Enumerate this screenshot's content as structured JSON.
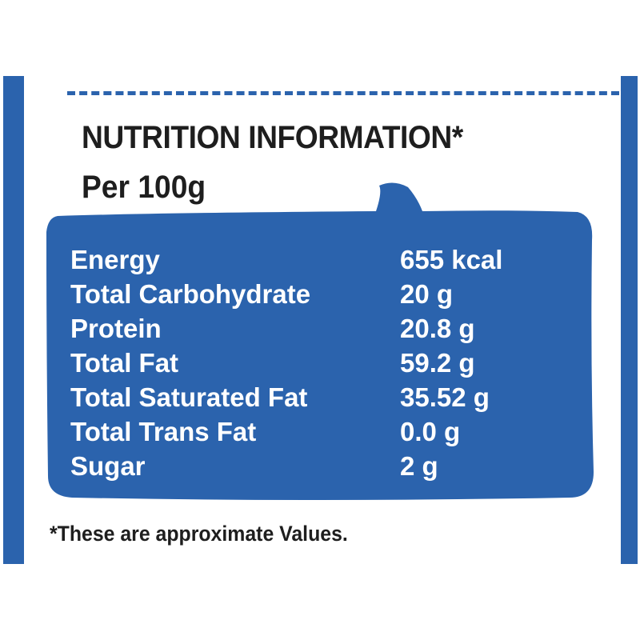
{
  "label": {
    "title": "NUTRITION INFORMATION*",
    "serving": "Per 100g",
    "rows": [
      {
        "nutrient": "Energy",
        "value": "655 kcal"
      },
      {
        "nutrient": "Total Carbohydrate",
        "value": "20 g"
      },
      {
        "nutrient": "Protein",
        "value": "20.8 g"
      },
      {
        "nutrient": "Total Fat",
        "value": "59.2 g"
      },
      {
        "nutrient": "Total Saturated Fat",
        "value": "35.52 g"
      },
      {
        "nutrient": "Total Trans Fat",
        "value": "0.0 g"
      },
      {
        "nutrient": "Sugar",
        "value": "2 g"
      }
    ],
    "footnote": "*These are approximate Values."
  },
  "colors": {
    "brand_blue": "#2b63ad",
    "text": "#1e1e1e"
  }
}
